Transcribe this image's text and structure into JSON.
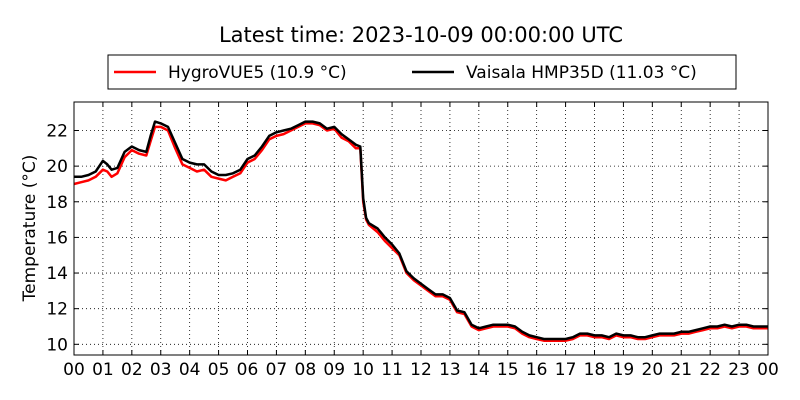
{
  "chart_data": {
    "type": "line",
    "title": "Latest time: 2023-10-09 00:00:00 UTC",
    "ylabel": "Temperature (°C)",
    "xlabel": "",
    "xlim": [
      0,
      24
    ],
    "ylim": [
      9.4,
      23.6
    ],
    "yticks": [
      10,
      12,
      14,
      16,
      18,
      20,
      22
    ],
    "xticks": [
      "00",
      "01",
      "02",
      "03",
      "04",
      "05",
      "06",
      "07",
      "08",
      "09",
      "10",
      "11",
      "12",
      "13",
      "14",
      "15",
      "16",
      "17",
      "18",
      "19",
      "20",
      "21",
      "22",
      "23",
      "00"
    ],
    "grid": true,
    "legend_position": "top",
    "series": [
      {
        "name": "HygroVUE5 (10.9 °C)",
        "color": "#ff0000",
        "x": [
          0,
          0.25,
          0.5,
          0.75,
          1.0,
          1.15,
          1.3,
          1.5,
          1.75,
          2.0,
          2.25,
          2.5,
          2.65,
          2.8,
          3.0,
          3.25,
          3.5,
          3.75,
          4.0,
          4.25,
          4.5,
          4.75,
          5.0,
          5.25,
          5.5,
          5.75,
          6.0,
          6.25,
          6.5,
          6.75,
          7.0,
          7.25,
          7.5,
          7.75,
          8.0,
          8.25,
          8.5,
          8.75,
          9.0,
          9.25,
          9.5,
          9.75,
          9.9,
          10.0,
          10.1,
          10.2,
          10.5,
          10.75,
          11.0,
          11.25,
          11.5,
          11.75,
          12.0,
          12.25,
          12.5,
          12.75,
          13.0,
          13.25,
          13.5,
          13.75,
          14.0,
          14.25,
          14.5,
          14.75,
          15.0,
          15.25,
          15.5,
          15.75,
          16.0,
          16.25,
          16.5,
          16.75,
          17.0,
          17.25,
          17.5,
          17.75,
          18.0,
          18.25,
          18.5,
          18.75,
          19.0,
          19.25,
          19.5,
          19.75,
          20.0,
          20.25,
          20.5,
          20.75,
          21.0,
          21.25,
          21.5,
          21.75,
          22.0,
          22.25,
          22.5,
          22.75,
          23.0,
          23.25,
          23.5,
          23.75,
          24.0
        ],
        "values": [
          19.0,
          19.1,
          19.2,
          19.4,
          19.8,
          19.7,
          19.4,
          19.6,
          20.5,
          20.9,
          20.7,
          20.6,
          21.4,
          22.2,
          22.2,
          22.0,
          21.0,
          20.1,
          19.9,
          19.7,
          19.8,
          19.4,
          19.3,
          19.2,
          19.4,
          19.6,
          20.2,
          20.4,
          20.9,
          21.5,
          21.7,
          21.8,
          22.0,
          22.2,
          22.4,
          22.4,
          22.3,
          22.0,
          22.1,
          21.6,
          21.4,
          21.0,
          21.0,
          18.0,
          17.0,
          16.7,
          16.3,
          15.8,
          15.4,
          15.0,
          14.0,
          13.6,
          13.3,
          13.0,
          12.7,
          12.7,
          12.5,
          11.8,
          11.7,
          11.0,
          10.8,
          10.9,
          11.0,
          11.0,
          11.0,
          10.9,
          10.6,
          10.4,
          10.3,
          10.2,
          10.2,
          10.2,
          10.2,
          10.3,
          10.5,
          10.5,
          10.4,
          10.4,
          10.3,
          10.5,
          10.4,
          10.4,
          10.3,
          10.3,
          10.4,
          10.5,
          10.5,
          10.5,
          10.6,
          10.6,
          10.7,
          10.8,
          10.9,
          10.9,
          11.0,
          10.9,
          11.0,
          11.0,
          10.9,
          10.9,
          10.9
        ]
      },
      {
        "name": "Vaisala HMP35D (11.03 °C)",
        "color": "#000000",
        "x": [
          0,
          0.25,
          0.5,
          0.75,
          1.0,
          1.15,
          1.3,
          1.5,
          1.75,
          2.0,
          2.25,
          2.5,
          2.65,
          2.8,
          3.0,
          3.25,
          3.5,
          3.75,
          4.0,
          4.25,
          4.5,
          4.75,
          5.0,
          5.25,
          5.5,
          5.75,
          6.0,
          6.25,
          6.5,
          6.75,
          7.0,
          7.25,
          7.5,
          7.75,
          8.0,
          8.25,
          8.5,
          8.75,
          9.0,
          9.25,
          9.5,
          9.75,
          9.9,
          10.0,
          10.1,
          10.2,
          10.5,
          10.75,
          11.0,
          11.25,
          11.5,
          11.75,
          12.0,
          12.25,
          12.5,
          12.75,
          13.0,
          13.25,
          13.5,
          13.75,
          14.0,
          14.25,
          14.5,
          14.75,
          15.0,
          15.25,
          15.5,
          15.75,
          16.0,
          16.25,
          16.5,
          16.75,
          17.0,
          17.25,
          17.5,
          17.75,
          18.0,
          18.25,
          18.5,
          18.75,
          19.0,
          19.25,
          19.5,
          19.75,
          20.0,
          20.25,
          20.5,
          20.75,
          21.0,
          21.25,
          21.5,
          21.75,
          22.0,
          22.25,
          22.5,
          22.75,
          23.0,
          23.25,
          23.5,
          23.75,
          24.0
        ],
        "values": [
          19.4,
          19.4,
          19.5,
          19.7,
          20.3,
          20.1,
          19.8,
          19.9,
          20.8,
          21.1,
          20.9,
          20.8,
          21.7,
          22.5,
          22.4,
          22.2,
          21.3,
          20.4,
          20.2,
          20.1,
          20.1,
          19.7,
          19.5,
          19.5,
          19.6,
          19.8,
          20.4,
          20.6,
          21.1,
          21.7,
          21.9,
          22.0,
          22.1,
          22.3,
          22.5,
          22.5,
          22.4,
          22.1,
          22.2,
          21.8,
          21.5,
          21.2,
          21.1,
          18.2,
          17.1,
          16.8,
          16.5,
          16.0,
          15.6,
          15.1,
          14.1,
          13.7,
          13.4,
          13.1,
          12.8,
          12.8,
          12.6,
          11.9,
          11.8,
          11.1,
          10.9,
          11.0,
          11.1,
          11.1,
          11.1,
          11.0,
          10.7,
          10.5,
          10.4,
          10.3,
          10.3,
          10.3,
          10.3,
          10.4,
          10.6,
          10.6,
          10.5,
          10.5,
          10.4,
          10.6,
          10.5,
          10.5,
          10.4,
          10.4,
          10.5,
          10.6,
          10.6,
          10.6,
          10.7,
          10.7,
          10.8,
          10.9,
          11.0,
          11.0,
          11.1,
          11.0,
          11.1,
          11.1,
          11.0,
          11.0,
          11.0
        ]
      }
    ]
  }
}
